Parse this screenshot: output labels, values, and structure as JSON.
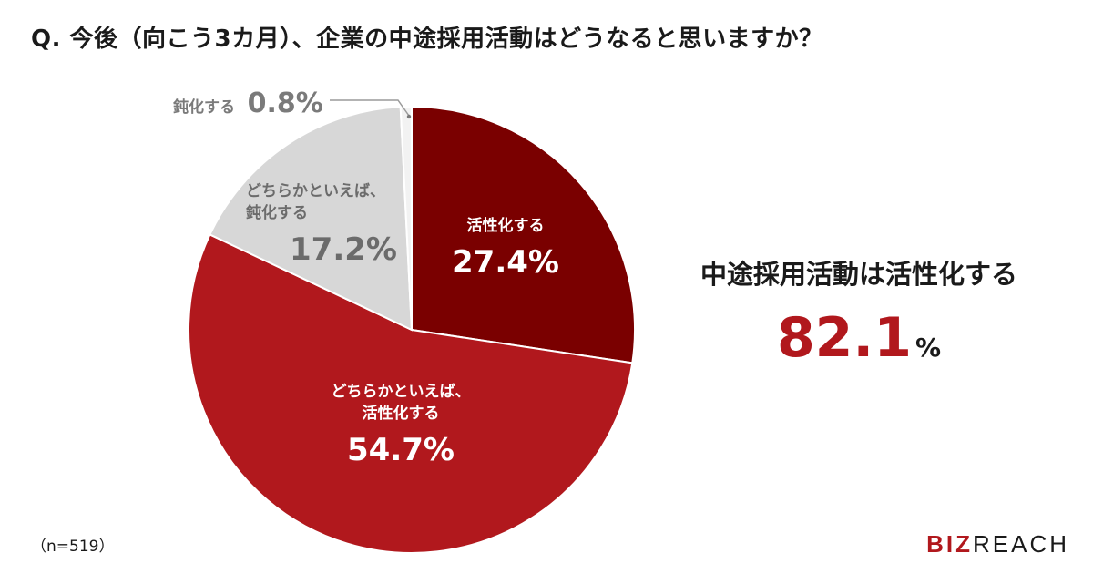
{
  "question": "Q. 今後（向こう3カ月）、企業の中途採用活動はどうなると思いますか？",
  "chart_data": {
    "type": "pie",
    "start_angle_deg": 0,
    "direction": "clockwise",
    "slices": [
      {
        "label_lines": [
          "活性化する"
        ],
        "value": 27.4,
        "value_text": "27.4%",
        "color": "#7a0000"
      },
      {
        "label_lines": [
          "どちらかといえば、",
          "活性化する"
        ],
        "value": 54.7,
        "value_text": "54.7%",
        "color": "#b1181d"
      },
      {
        "label_lines": [
          "どちらかといえば、",
          "鈍化する"
        ],
        "value": 17.2,
        "value_text": "17.2%",
        "color": "#d7d7d7"
      },
      {
        "label_lines": [
          "鈍化する"
        ],
        "value": 0.8,
        "value_text": "0.8%",
        "color": "#f2f2f2"
      }
    ]
  },
  "summary": {
    "title": "中途採用活動は活性化する",
    "value": "82.1",
    "unit": "%",
    "value_color": "#b1181d"
  },
  "note": "（n=519）",
  "logo": {
    "part1": "BIZ",
    "part2": "REACH"
  }
}
